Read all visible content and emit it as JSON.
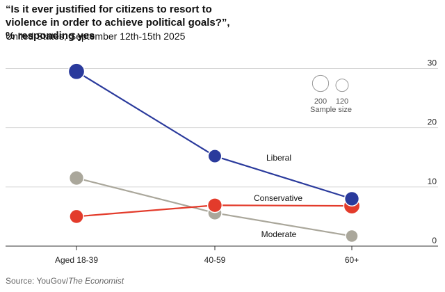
{
  "header": {
    "title": "“Is it ever justified for citizens to resort to violence in order to achieve political goals?”, % responding yes",
    "subtitle": "United States, September 12th-15th 2025"
  },
  "footer": {
    "source_prefix": "Source: YouGov/",
    "source_publication": "The Economist"
  },
  "size_legend": {
    "large_value": "200",
    "small_value": "120",
    "label": "Sample size"
  },
  "colors": {
    "liberal": "#2a3a9c",
    "conservative": "#e33b2b",
    "moderate": "#aaa79b",
    "grid": "#d6d6d6",
    "axis": "#333333"
  },
  "chart_data": {
    "type": "scatter",
    "categories": [
      "Aged 18-39",
      "40-59",
      "60+"
    ],
    "yticks": [
      0,
      10,
      20,
      30
    ],
    "ylim": [
      0,
      31
    ],
    "series": [
      {
        "name": "Liberal",
        "color_key": "liberal",
        "values": [
          29.5,
          15.2,
          8.0
        ],
        "sample_sizes": [
          200,
          140,
          160
        ]
      },
      {
        "name": "Conservative",
        "color_key": "conservative",
        "values": [
          5.0,
          6.9,
          6.8
        ],
        "sample_sizes": [
          150,
          160,
          200
        ]
      },
      {
        "name": "Moderate",
        "color_key": "moderate",
        "values": [
          11.5,
          5.6,
          1.7
        ],
        "sample_sizes": [
          160,
          150,
          120
        ]
      }
    ]
  }
}
